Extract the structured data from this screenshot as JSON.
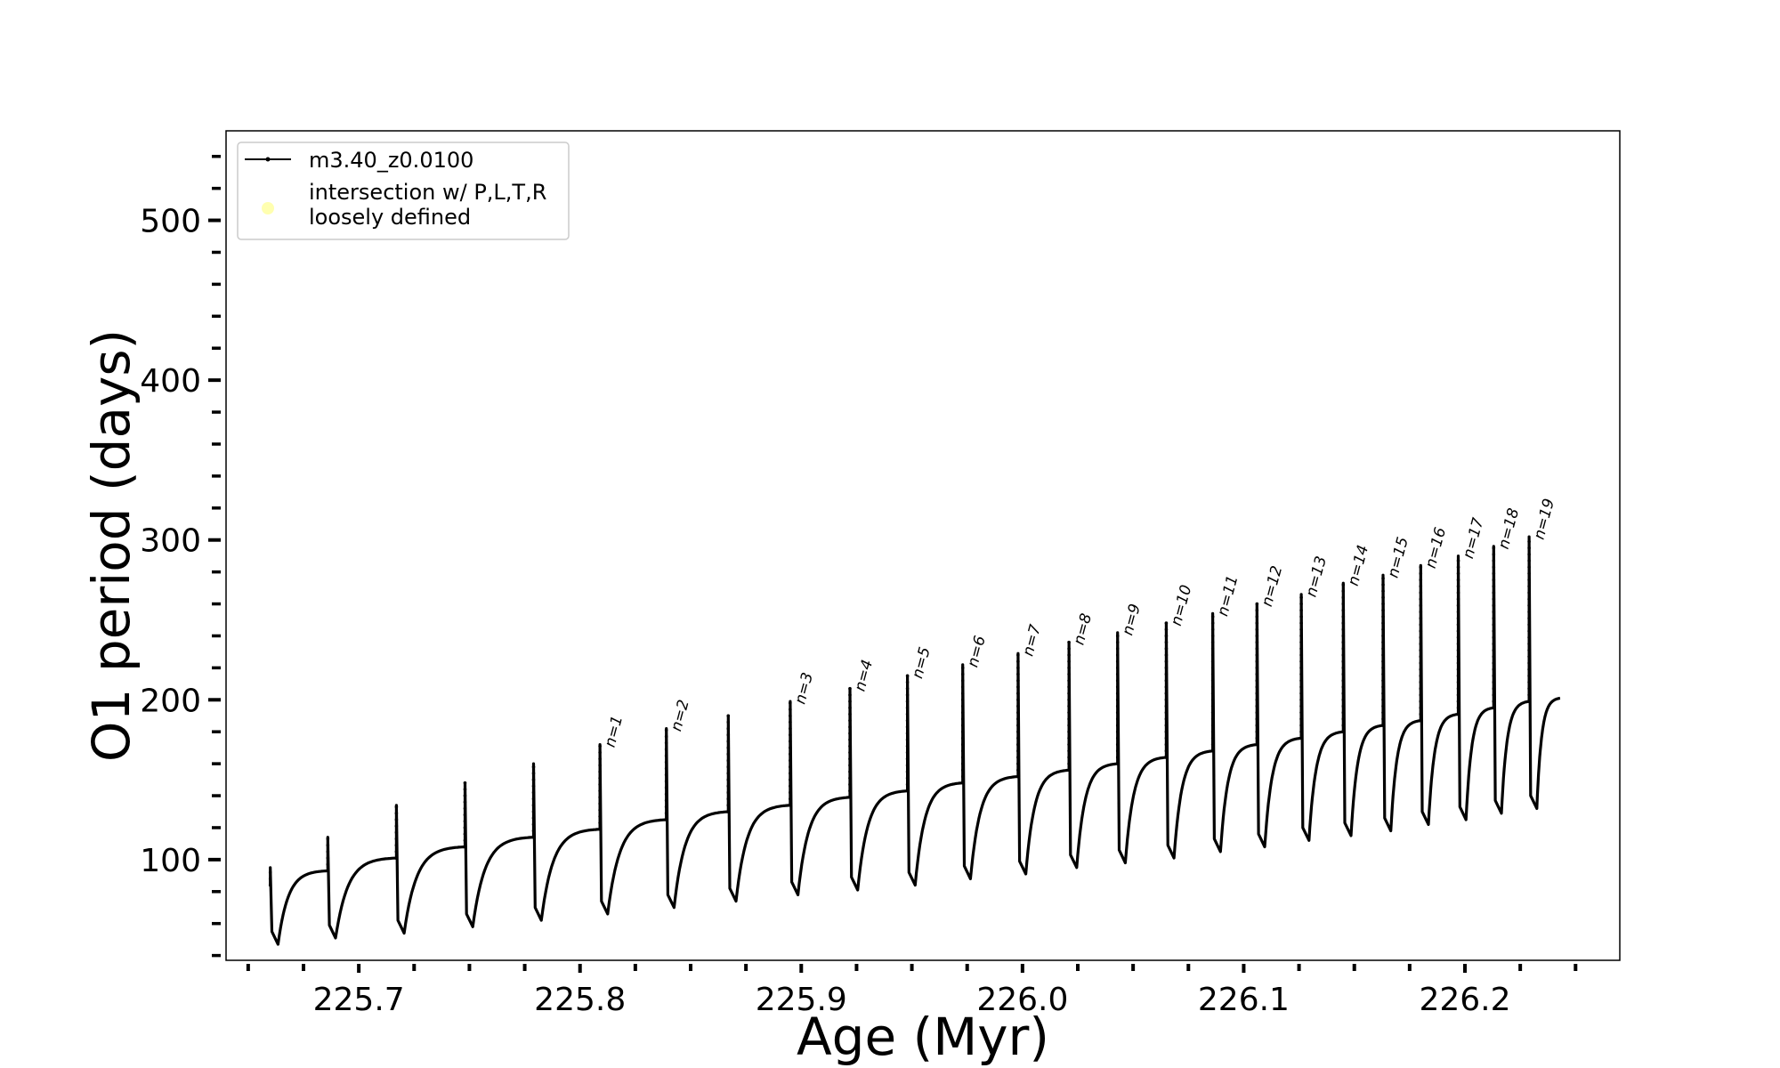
{
  "chart_data": {
    "type": "line",
    "title": "",
    "xlabel": "Age (Myr)",
    "ylabel": "O1 period (days)",
    "xlim": [
      225.64,
      226.27
    ],
    "ylim": [
      37,
      556
    ],
    "xticks": [
      225.7,
      225.8,
      225.9,
      226.0,
      226.1,
      226.2
    ],
    "xtick_labels": [
      "225.7",
      "225.8",
      "225.9",
      "226.0",
      "226.1",
      "226.2"
    ],
    "xminor_step": 0.025,
    "yticks": [
      100,
      200,
      300,
      400,
      500
    ],
    "ytick_labels": [
      "100",
      "200",
      "300",
      "400",
      "500"
    ],
    "yminor_step": 20,
    "grid": false,
    "legend": {
      "placement": "upper-left",
      "entries": [
        {
          "label": "m3.40_z0.0100",
          "marker": "line-dot",
          "color": "#000000"
        },
        {
          "label": "intersection w/ P,L,T,R\nloosely defined",
          "marker": "circle",
          "color": "#ffffb0"
        }
      ]
    },
    "series": [
      {
        "name": "m3.40_z0.0100",
        "color": "#000000",
        "end_age": 226.243,
        "end_period": 201,
        "cycles": [
          {
            "n": null,
            "age": 225.66,
            "spike": 95,
            "min": 47,
            "pre": 84
          },
          {
            "n": null,
            "age": 225.686,
            "spike": 114,
            "min": 51,
            "pre": 93
          },
          {
            "n": null,
            "age": 225.717,
            "spike": 134,
            "min": 54,
            "pre": 101
          },
          {
            "n": null,
            "age": 225.748,
            "spike": 148,
            "min": 58,
            "pre": 108
          },
          {
            "n": null,
            "age": 225.779,
            "spike": 160,
            "min": 62,
            "pre": 114
          },
          {
            "n": "n=1",
            "age": 225.809,
            "spike": 172,
            "min": 66,
            "pre": 119
          },
          {
            "n": "n=2",
            "age": 225.839,
            "spike": 182,
            "min": 70,
            "pre": 125
          },
          {
            "n": null,
            "age": 225.867,
            "spike": 190,
            "min": 74,
            "pre": 130
          },
          {
            "n": "n=3",
            "age": 225.895,
            "spike": 199,
            "min": 78,
            "pre": 134
          },
          {
            "n": "n=4",
            "age": 225.922,
            "spike": 207,
            "min": 81,
            "pre": 139
          },
          {
            "n": "n=5",
            "age": 225.948,
            "spike": 215,
            "min": 84,
            "pre": 143
          },
          {
            "n": "n=6",
            "age": 225.973,
            "spike": 222,
            "min": 88,
            "pre": 148
          },
          {
            "n": "n=7",
            "age": 225.998,
            "spike": 229,
            "min": 91,
            "pre": 152
          },
          {
            "n": "n=8",
            "age": 226.021,
            "spike": 236,
            "min": 95,
            "pre": 156
          },
          {
            "n": "n=9",
            "age": 226.043,
            "spike": 242,
            "min": 98,
            "pre": 160
          },
          {
            "n": "n=10",
            "age": 226.065,
            "spike": 248,
            "min": 101,
            "pre": 164
          },
          {
            "n": "n=11",
            "age": 226.086,
            "spike": 254,
            "min": 105,
            "pre": 168
          },
          {
            "n": "n=12",
            "age": 226.106,
            "spike": 260,
            "min": 108,
            "pre": 172
          },
          {
            "n": "n=13",
            "age": 226.126,
            "spike": 266,
            "min": 112,
            "pre": 176
          },
          {
            "n": "n=14",
            "age": 226.145,
            "spike": 273,
            "min": 115,
            "pre": 180
          },
          {
            "n": "n=15",
            "age": 226.163,
            "spike": 278,
            "min": 118,
            "pre": 184
          },
          {
            "n": "n=16",
            "age": 226.18,
            "spike": 284,
            "min": 122,
            "pre": 187
          },
          {
            "n": "n=17",
            "age": 226.197,
            "spike": 290,
            "min": 125,
            "pre": 191
          },
          {
            "n": "n=18",
            "age": 226.213,
            "spike": 296,
            "min": 129,
            "pre": 195
          },
          {
            "n": "n=19",
            "age": 226.229,
            "spike": 302,
            "min": 132,
            "pre": 199
          }
        ]
      }
    ]
  }
}
